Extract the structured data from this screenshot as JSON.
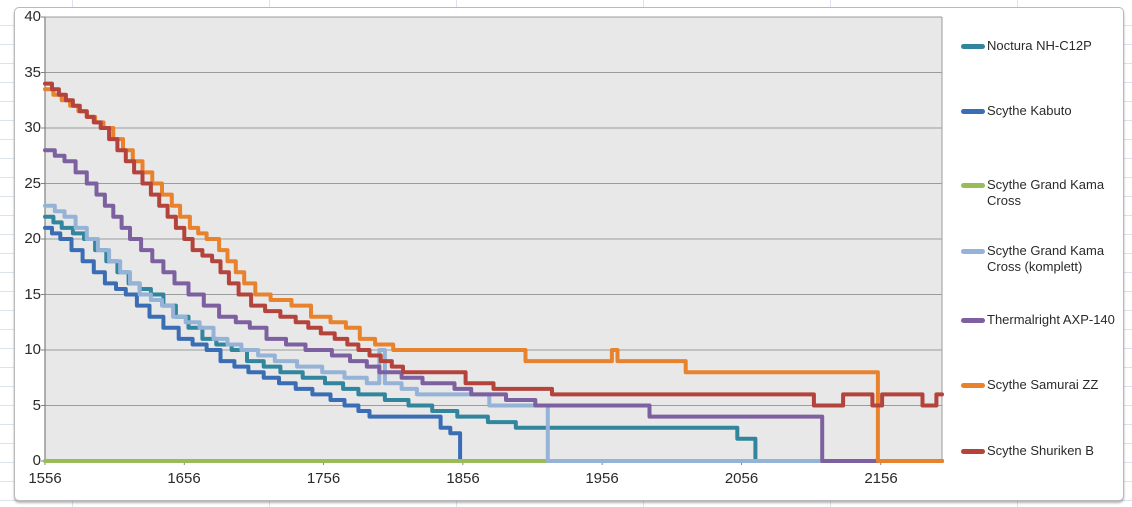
{
  "chart_data": {
    "type": "line",
    "subtype": "step-after",
    "title": "",
    "xlabel": "",
    "ylabel": "",
    "grid": true,
    "legend_position": "right",
    "plot_bg_color": "#e8e8e8",
    "gridline_color": "#9c9c9c",
    "axis_line_color": "#808080",
    "x_axis": {
      "min": 1556,
      "max": 2200,
      "tick_step": 100,
      "ticks": [
        1556,
        1656,
        1756,
        1856,
        1956,
        2056,
        2156
      ],
      "tick_labels": [
        "1556",
        "1656",
        "1756",
        "1856",
        "1956",
        "2056",
        "2156"
      ]
    },
    "y_axis": {
      "min": 0,
      "max": 40,
      "tick_step": 5,
      "ticks": [
        40,
        35,
        30,
        25,
        20,
        15,
        10,
        5,
        0
      ],
      "tick_labels": [
        "40",
        "35",
        "30",
        "25",
        "20",
        "15",
        "10",
        "5",
        "0"
      ]
    },
    "series": [
      {
        "name": "Noctura NH-C12P",
        "color": "#31859c",
        "points": [
          [
            1556,
            22
          ],
          [
            1562,
            21.5
          ],
          [
            1568,
            21
          ],
          [
            1576,
            20.5
          ],
          [
            1584,
            20
          ],
          [
            1592,
            19
          ],
          [
            1600,
            18
          ],
          [
            1608,
            17
          ],
          [
            1616,
            16
          ],
          [
            1624,
            15.5
          ],
          [
            1632,
            15
          ],
          [
            1641,
            14
          ],
          [
            1650,
            13
          ],
          [
            1659,
            12
          ],
          [
            1669,
            11
          ],
          [
            1679,
            10.5
          ],
          [
            1690,
            10
          ],
          [
            1701,
            9
          ],
          [
            1713,
            8.5
          ],
          [
            1725,
            8
          ],
          [
            1741,
            7.5
          ],
          [
            1757,
            7
          ],
          [
            1770,
            6.5
          ],
          [
            1781,
            6
          ],
          [
            1800,
            5.5
          ],
          [
            1817,
            5
          ],
          [
            1834,
            4.5
          ],
          [
            1852,
            4
          ],
          [
            1874,
            3.5
          ],
          [
            1894,
            3
          ],
          [
            2053,
            2
          ],
          [
            2066,
            0
          ]
        ]
      },
      {
        "name": "Scythe Kabuto",
        "color": "#3b6db5",
        "points": [
          [
            1556,
            21
          ],
          [
            1561,
            20.5
          ],
          [
            1567,
            20
          ],
          [
            1575,
            19
          ],
          [
            1583,
            18
          ],
          [
            1591,
            17
          ],
          [
            1599,
            16
          ],
          [
            1607,
            15.5
          ],
          [
            1614,
            15
          ],
          [
            1622,
            14
          ],
          [
            1631,
            13
          ],
          [
            1641,
            12
          ],
          [
            1652,
            11
          ],
          [
            1662,
            10.5
          ],
          [
            1672,
            10
          ],
          [
            1682,
            9
          ],
          [
            1692,
            8.5
          ],
          [
            1702,
            8
          ],
          [
            1713,
            7.5
          ],
          [
            1724,
            7
          ],
          [
            1736,
            6.5
          ],
          [
            1748,
            6
          ],
          [
            1761,
            5.5
          ],
          [
            1771,
            5
          ],
          [
            1781,
            4.5
          ],
          [
            1789,
            4
          ],
          [
            1840,
            3
          ],
          [
            1847,
            2.5
          ],
          [
            1854,
            0
          ]
        ]
      },
      {
        "name": "Scythe Grand Kama Cross",
        "color": "#9abb59",
        "points": [
          [
            1556,
            0
          ],
          [
            2200,
            0
          ]
        ]
      },
      {
        "name": "Scythe Grand Kama Cross (komplett)",
        "color": "#95b3d7",
        "points": [
          [
            1556,
            23
          ],
          [
            1563,
            22.5
          ],
          [
            1570,
            22
          ],
          [
            1578,
            21
          ],
          [
            1586,
            20
          ],
          [
            1594,
            19
          ],
          [
            1602,
            18
          ],
          [
            1610,
            17
          ],
          [
            1617,
            16
          ],
          [
            1624,
            15
          ],
          [
            1632,
            14.5
          ],
          [
            1640,
            14
          ],
          [
            1648,
            13
          ],
          [
            1657,
            12.5
          ],
          [
            1667,
            12
          ],
          [
            1677,
            11
          ],
          [
            1687,
            10.5
          ],
          [
            1697,
            10
          ],
          [
            1709,
            9.5
          ],
          [
            1721,
            9
          ],
          [
            1737,
            8.5
          ],
          [
            1755,
            8
          ],
          [
            1771,
            7.5
          ],
          [
            1787,
            7
          ],
          [
            1796,
            10
          ],
          [
            1800,
            7
          ],
          [
            1812,
            6.5
          ],
          [
            1823,
            6
          ],
          [
            1875,
            5
          ],
          [
            1917,
            0
          ],
          [
            2200,
            0
          ]
        ]
      },
      {
        "name": "Thermalright AXP-140",
        "color": "#7d60a0",
        "points": [
          [
            1556,
            28
          ],
          [
            1563,
            27.5
          ],
          [
            1570,
            27
          ],
          [
            1578,
            26
          ],
          [
            1586,
            25
          ],
          [
            1593,
            24
          ],
          [
            1599,
            23
          ],
          [
            1605,
            22
          ],
          [
            1611,
            21
          ],
          [
            1617,
            20
          ],
          [
            1625,
            19
          ],
          [
            1633,
            18
          ],
          [
            1641,
            17
          ],
          [
            1649,
            16
          ],
          [
            1659,
            15
          ],
          [
            1670,
            14
          ],
          [
            1681,
            13
          ],
          [
            1693,
            12.5
          ],
          [
            1703,
            12
          ],
          [
            1715,
            11
          ],
          [
            1729,
            10.5
          ],
          [
            1743,
            10
          ],
          [
            1762,
            9.5
          ],
          [
            1775,
            9
          ],
          [
            1787,
            8.5
          ],
          [
            1796,
            8
          ],
          [
            1812,
            7.5
          ],
          [
            1827,
            7
          ],
          [
            1850,
            6.5
          ],
          [
            1862,
            6
          ],
          [
            1887,
            5.5
          ],
          [
            1908,
            5
          ],
          [
            1990,
            4
          ],
          [
            2114,
            0
          ],
          [
            2200,
            0
          ]
        ]
      },
      {
        "name": "Scythe Samurai ZZ",
        "color": "#e8822d",
        "points": [
          [
            1556,
            33.5
          ],
          [
            1562,
            33
          ],
          [
            1568,
            32.5
          ],
          [
            1574,
            32
          ],
          [
            1580,
            31.5
          ],
          [
            1586,
            31
          ],
          [
            1592,
            30.5
          ],
          [
            1598,
            30
          ],
          [
            1605,
            29
          ],
          [
            1612,
            28
          ],
          [
            1619,
            27
          ],
          [
            1626,
            26
          ],
          [
            1633,
            25
          ],
          [
            1640,
            24
          ],
          [
            1647,
            23
          ],
          [
            1653,
            22
          ],
          [
            1660,
            21
          ],
          [
            1666,
            20.5
          ],
          [
            1672,
            20
          ],
          [
            1681,
            19
          ],
          [
            1687,
            18
          ],
          [
            1693,
            17
          ],
          [
            1699,
            16
          ],
          [
            1707,
            15
          ],
          [
            1718,
            14.5
          ],
          [
            1733,
            14
          ],
          [
            1747,
            13
          ],
          [
            1761,
            12.5
          ],
          [
            1772,
            12
          ],
          [
            1782,
            11
          ],
          [
            1793,
            10.5
          ],
          [
            1806,
            10
          ],
          [
            1901,
            9
          ],
          [
            1963,
            10
          ],
          [
            1967,
            9
          ],
          [
            2016,
            8
          ],
          [
            2154,
            0
          ],
          [
            2200,
            0
          ]
        ]
      },
      {
        "name": "Scythe Shuriken B",
        "color": "#b4433c",
        "points": [
          [
            1556,
            34
          ],
          [
            1561,
            33.5
          ],
          [
            1566,
            33
          ],
          [
            1571,
            32.5
          ],
          [
            1576,
            32
          ],
          [
            1581,
            31.5
          ],
          [
            1586,
            31
          ],
          [
            1591,
            30.5
          ],
          [
            1596,
            30
          ],
          [
            1602,
            29
          ],
          [
            1608,
            28
          ],
          [
            1614,
            27
          ],
          [
            1620,
            26
          ],
          [
            1626,
            25
          ],
          [
            1632,
            24
          ],
          [
            1638,
            23
          ],
          [
            1644,
            22
          ],
          [
            1650,
            21
          ],
          [
            1656,
            20
          ],
          [
            1662,
            19
          ],
          [
            1669,
            18.5
          ],
          [
            1676,
            18
          ],
          [
            1682,
            17
          ],
          [
            1688,
            16
          ],
          [
            1695,
            15
          ],
          [
            1704,
            14
          ],
          [
            1714,
            13.5
          ],
          [
            1725,
            13
          ],
          [
            1736,
            12.5
          ],
          [
            1745,
            12
          ],
          [
            1754,
            11.5
          ],
          [
            1764,
            11
          ],
          [
            1773,
            10.5
          ],
          [
            1781,
            10
          ],
          [
            1789,
            9.5
          ],
          [
            1797,
            9
          ],
          [
            1805,
            8.5
          ],
          [
            1813,
            8
          ],
          [
            1858,
            7
          ],
          [
            1878,
            6.5
          ],
          [
            1920,
            6
          ],
          [
            2108,
            5
          ],
          [
            2129,
            6
          ],
          [
            2150,
            5
          ],
          [
            2157,
            6
          ],
          [
            2186,
            5
          ],
          [
            2196,
            6
          ],
          [
            2200,
            6
          ]
        ]
      }
    ]
  }
}
